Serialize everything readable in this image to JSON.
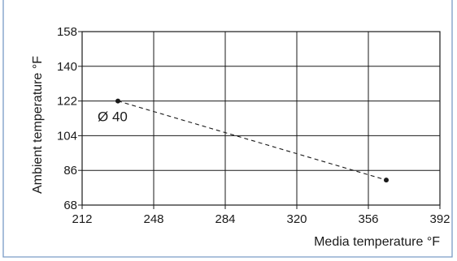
{
  "chart_data": {
    "type": "line",
    "title": "",
    "xlabel": "Media temperature °F",
    "ylabel": "Ambient temperature °F",
    "xlim": [
      212,
      392
    ],
    "ylim": [
      68,
      158
    ],
    "x_ticks": [
      212,
      248,
      284,
      320,
      356,
      392
    ],
    "y_ticks": [
      68,
      86,
      104,
      122,
      140,
      158
    ],
    "grid": true,
    "series": [
      {
        "x": [
          230,
          365
        ],
        "y": [
          122,
          81
        ]
      }
    ],
    "annotations": [
      {
        "text": "Ø 40",
        "x": 230,
        "y": 122
      }
    ],
    "colors": {
      "frame": "#7a9cc6",
      "grid": "#1a1a1a",
      "line": "#1a1a1a"
    }
  }
}
